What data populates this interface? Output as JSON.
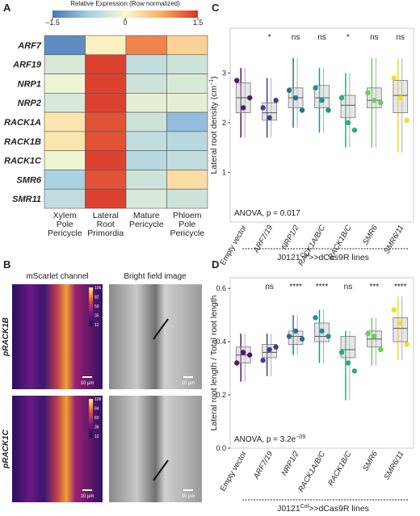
{
  "panel_labels": [
    "A",
    "B",
    "C",
    "D"
  ],
  "chart_data": [
    {
      "type": "heatmap",
      "colorbar_title": "Relative Expression (Row normalized)",
      "clim": [
        -1.5,
        1.5
      ],
      "cticks": [
        {
          "value": -1.5,
          "label": "−1.5"
        },
        0,
        1.5
      ],
      "rows": [
        "ARF7",
        "ARF19",
        "NRP1",
        "NRP2",
        "RACK1A",
        "RACK1B",
        "RACK1C",
        "SMR6",
        "SMR11"
      ],
      "categories": [
        [
          "Xylem",
          "Pole",
          "Pericycle"
        ],
        [
          "Lateral",
          "Root",
          "Primordia"
        ],
        [
          "Mature",
          "Pericycle"
        ],
        [
          "Phloem",
          "Pole",
          "Pericycle"
        ]
      ],
      "values": [
        [
          -1.3,
          0.1,
          1.0,
          0.4
        ],
        [
          -0.3,
          1.4,
          -0.5,
          -0.4
        ],
        [
          -0.1,
          1.4,
          -0.4,
          -0.3
        ],
        [
          -0.3,
          1.4,
          -0.2,
          -0.2
        ],
        [
          0.2,
          1.3,
          -0.4,
          -0.9
        ],
        [
          0.2,
          1.3,
          -0.5,
          -0.6
        ],
        [
          -0.1,
          1.4,
          -0.6,
          -0.5
        ],
        [
          -0.7,
          1.3,
          -0.4,
          0.3
        ],
        [
          -0.5,
          1.4,
          -0.3,
          -0.4
        ]
      ]
    },
    {
      "type": "box",
      "ylabel": "Lateral root density (cm",
      "ylabel_sup": "−1",
      "ylabel_end": ")",
      "categories": [
        "Empty vector",
        "ARF7/19",
        "NRP1/2",
        "RACK1A/B/C",
        "RACK1B/C",
        "SMR6",
        "SMR6/11"
      ],
      "colors": [
        "#4b1a6e",
        "#433e85",
        "#2c6f8e",
        "#21908d",
        "#28ae80",
        "#6cce59",
        "#f2dc2a"
      ],
      "ylim": [
        0,
        3.9
      ],
      "yticks": [
        1,
        2,
        3
      ],
      "significance": [
        null,
        "*",
        "ns",
        "ns",
        "*",
        "ns",
        "ns"
      ],
      "whisker_low": [
        1.7,
        1.7,
        1.9,
        1.8,
        1.5,
        1.5,
        1.4
      ],
      "q1": [
        2.2,
        2.05,
        2.3,
        2.3,
        2.1,
        2.3,
        2.2
      ],
      "median": [
        2.5,
        2.2,
        2.5,
        2.5,
        2.35,
        2.45,
        2.55
      ],
      "q3": [
        2.8,
        2.4,
        2.7,
        2.75,
        2.55,
        2.7,
        2.85
      ],
      "whisker_high": [
        3.1,
        2.9,
        3.3,
        3.1,
        3.0,
        3.3,
        3.3
      ],
      "points": [
        [
          2.85,
          2.3,
          2.5
        ],
        [
          2.3,
          2.1,
          2.45
        ],
        [
          2.65,
          2.5,
          2.25
        ],
        [
          2.7,
          2.45,
          2.25
        ],
        [
          2.5,
          2.0,
          1.85
        ],
        [
          2.6,
          2.45,
          2.4
        ],
        [
          2.9,
          2.5,
          2.05
        ]
      ],
      "annotation": "ANOVA, p = 0.017",
      "xlabel": {
        "base": "J0121",
        "sup": "Col",
        "rest": ">>dCas9R lines"
      }
    },
    {
      "type": "box",
      "ylabel": "Lateral root length / Total root length",
      "categories": [
        "Empty vector",
        "ARF7/19",
        "NRP1/2",
        "RACK1A/B/C",
        "RACK1B/C",
        "SMR6",
        "SMR6/11"
      ],
      "colors": [
        "#4b1a6e",
        "#433e85",
        "#2c6f8e",
        "#21908d",
        "#28ae80",
        "#6cce59",
        "#f2dc2a"
      ],
      "ylim": [
        0,
        0.64
      ],
      "yticks": [
        {
          "value": 0,
          "label": "0.0"
        },
        0.2,
        0.4,
        0.6
      ],
      "significance": [
        null,
        "ns",
        "****",
        "****",
        "ns",
        "***",
        "****"
      ],
      "whisker_low": [
        0.25,
        0.27,
        0.35,
        0.32,
        0.18,
        0.31,
        0.33
      ],
      "q1": [
        0.32,
        0.34,
        0.39,
        0.4,
        0.34,
        0.38,
        0.4
      ],
      "median": [
        0.35,
        0.36,
        0.42,
        0.42,
        0.37,
        0.41,
        0.45
      ],
      "q3": [
        0.38,
        0.39,
        0.44,
        0.47,
        0.42,
        0.44,
        0.49
      ],
      "whisker_high": [
        0.43,
        0.43,
        0.5,
        0.52,
        0.44,
        0.49,
        0.57
      ],
      "points": [
        [
          0.32,
          0.36,
          0.35
        ],
        [
          0.33,
          0.37,
          0.38
        ],
        [
          0.42,
          0.44,
          0.41
        ],
        [
          0.49,
          0.44,
          0.42
        ],
        [
          0.36,
          0.32,
          0.29
        ],
        [
          0.43,
          0.42,
          0.37
        ],
        [
          0.52,
          0.47,
          0.39
        ]
      ],
      "annotation": "ANOVA, p = 3.2e",
      "annotation_sup": "−09",
      "xlabel": {
        "base": "J0121",
        "sup": "Col",
        "rest": ">>dCas9R lines"
      }
    }
  ],
  "panel_b": {
    "columns": [
      "mScarlet channel",
      "Bright field image"
    ],
    "rows": [
      "pRACK1B",
      "pRACK1C"
    ],
    "scalebar": "10 µm",
    "colorbar_ticks": [
      [
        106,
        82,
        59,
        35,
        12
      ],
      [
        108,
        84,
        60,
        36,
        12
      ]
    ]
  }
}
